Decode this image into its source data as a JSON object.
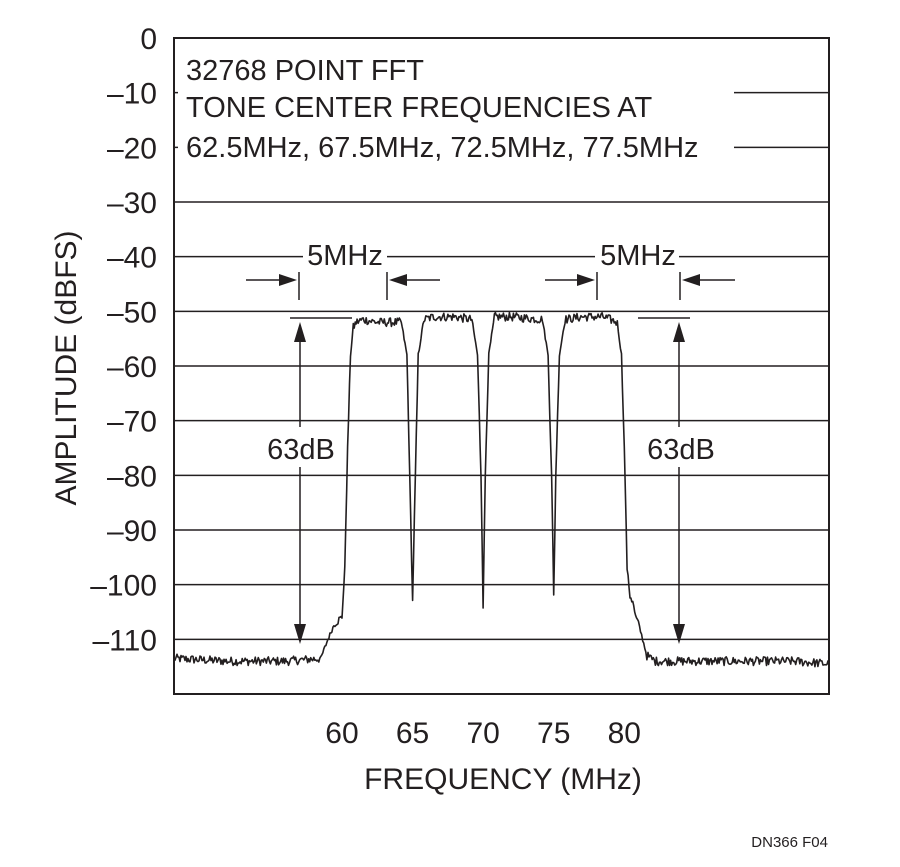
{
  "chart_data": {
    "type": "line",
    "notes": [
      "32768 POINT FFT",
      "TONE CENTER FREQUENCIES AT",
      "62.5MHz, 67.5MHz, 72.5MHz, 77.5MHz"
    ],
    "xlabel": "FREQUENCY (MHz)",
    "ylabel": "AMPLITUDE (dBFS)",
    "x_ticks": [
      60,
      65,
      70,
      75,
      80
    ],
    "x_tick_labels": [
      "60",
      "65",
      "70",
      "75",
      "80"
    ],
    "xlim": [
      48.1,
      94.5
    ],
    "y_ticks": [
      0,
      -10,
      -20,
      -30,
      -40,
      -50,
      -60,
      -70,
      -80,
      -90,
      -100,
      -110
    ],
    "y_tick_labels": [
      "0",
      "–10",
      "–20",
      "–30",
      "–40",
      "–50",
      "–60",
      "–70",
      "–80",
      "–90",
      "–100",
      "–110"
    ],
    "ylim": [
      -120,
      0
    ],
    "grid": true,
    "series": [
      {
        "color": "#231f20",
        "x": [
          48.1,
          52,
          56,
          58.5,
          59.0,
          59.5,
          60.0,
          60.2,
          60.4,
          60.6,
          60.8,
          61.0,
          61.5,
          62.5,
          63.5,
          64.2,
          64.6,
          64.8,
          65.0,
          65.2,
          65.4,
          65.8,
          66.5,
          68,
          69.2,
          69.6,
          69.85,
          70.0,
          70.15,
          70.4,
          70.8,
          72,
          74.2,
          74.6,
          74.85,
          75.0,
          75.15,
          75.4,
          75.8,
          77,
          78.5,
          79.5,
          79.8,
          80.0,
          80.2,
          80.4,
          80.6,
          80.8,
          81.0,
          81.3,
          81.6,
          82.2,
          84,
          88,
          92,
          94.5
        ],
        "y": [
          -113.5,
          -114,
          -114,
          -113.5,
          -110,
          -107,
          -106,
          -97,
          -75,
          -58,
          -53,
          -52,
          -51.5,
          -52,
          -52,
          -52,
          -58,
          -80,
          -103,
          -80,
          -58,
          -51.5,
          -51,
          -51,
          -51.5,
          -58,
          -80,
          -104,
          -80,
          -58,
          -51,
          -51,
          -51.5,
          -58,
          -80,
          -102,
          -80,
          -58,
          -51.5,
          -51,
          -51,
          -52,
          -58,
          -75,
          -97,
          -102,
          -103,
          -106,
          -107,
          -110,
          -113,
          -114,
          -114,
          -114,
          -114,
          -114.5
        ]
      }
    ],
    "annotations": {
      "spacing_left": "5MHz",
      "spacing_right": "5MHz",
      "depth_left": "63dB",
      "depth_right": "63dB"
    },
    "figure_id": "DN366 F04"
  }
}
